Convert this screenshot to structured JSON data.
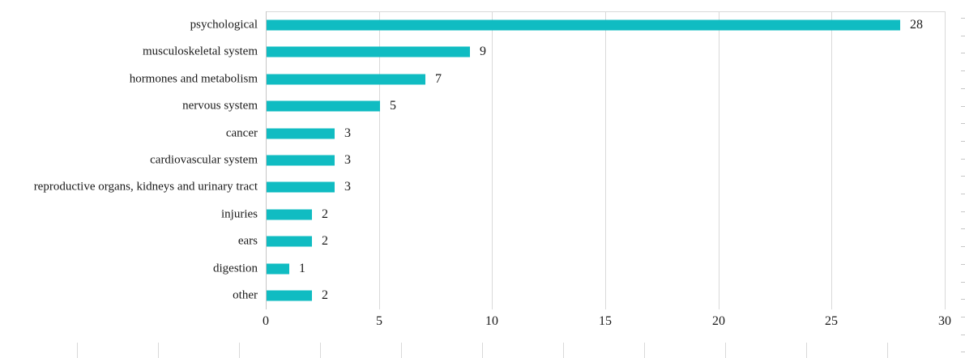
{
  "chart_data": {
    "type": "bar",
    "orientation": "horizontal",
    "title": "",
    "xlabel": "",
    "ylabel": "",
    "categories": [
      "psychological",
      "musculoskeletal system",
      "hormones and metabolism",
      "nervous system",
      "cancer",
      "cardiovascular system",
      "reproductive organs, kidneys and urinary tract",
      "injuries",
      "ears",
      "digestion",
      "other"
    ],
    "values": [
      28,
      9,
      7,
      5,
      3,
      3,
      3,
      2,
      2,
      1,
      2
    ],
    "value_labels": [
      "28",
      "9",
      "7",
      "5",
      "3",
      "3",
      "3",
      "2",
      "2",
      "1",
      "2"
    ],
    "xticks": [
      0,
      5,
      10,
      15,
      20,
      25,
      30
    ],
    "xtick_labels": [
      "0",
      "5",
      "10",
      "15",
      "20",
      "25",
      "30"
    ],
    "xlim": [
      0,
      30
    ],
    "grid": true,
    "legend": false,
    "bar_color": "#10bcc2",
    "gridline_color": "#d9d9d9",
    "zero_axis_color": "#c6c6c6",
    "text_color": "#1a1a1a"
  }
}
